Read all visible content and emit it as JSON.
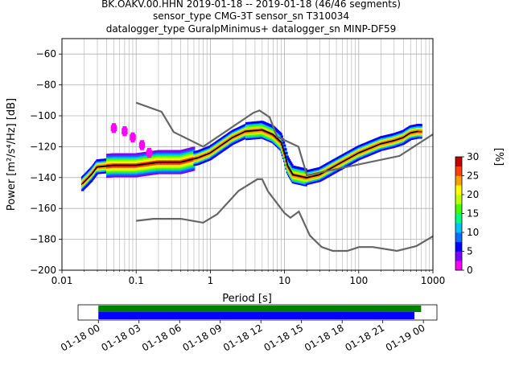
{
  "chart_data": {
    "type": "heatmap",
    "title_lines": [
      "BK.OAKV.00.HHN   2019-01-18 -- 2019-01-18  (46/46 segments)",
      "sensor_type CMG-3T sensor_sn T310034",
      "datalogger_type GuralpMinimus+ datalogger_sn MINP-DF59"
    ],
    "xlabel": "Period [s]",
    "ylabel": "Power [m²/s⁴/Hz] [dB]",
    "x_scale": "log",
    "xlim": [
      0.01,
      1000
    ],
    "ylim": [
      -200,
      -50
    ],
    "x_ticks": [
      {
        "value": 0.01,
        "label": "0.01"
      },
      {
        "value": 0.1,
        "label": "0.1"
      },
      {
        "value": 1,
        "label": "1"
      },
      {
        "value": 10,
        "label": "10"
      },
      {
        "value": 100,
        "label": "100"
      },
      {
        "value": 1000,
        "label": "1000"
      }
    ],
    "y_ticks": [
      {
        "value": -60,
        "label": "−60"
      },
      {
        "value": -80,
        "label": "−80"
      },
      {
        "value": -100,
        "label": "−100"
      },
      {
        "value": -120,
        "label": "−120"
      },
      {
        "value": -140,
        "label": "−140"
      },
      {
        "value": -160,
        "label": "−160"
      },
      {
        "value": -180,
        "label": "−180"
      },
      {
        "value": -200,
        "label": "−200"
      }
    ],
    "grid": true,
    "high_noise_model": [
      [
        0.1,
        -91.5
      ],
      [
        0.22,
        -97.4
      ],
      [
        0.32,
        -110.5
      ],
      [
        0.8,
        -120
      ],
      [
        3.8,
        -98
      ],
      [
        4.6,
        -96.5
      ],
      [
        6.3,
        -101
      ],
      [
        7.9,
        -113.5
      ],
      [
        15.4,
        -120
      ],
      [
        20,
        -138.5
      ],
      [
        354.8,
        -126
      ],
      [
        1000,
        -112
      ]
    ],
    "low_noise_model": [
      [
        0.1,
        -168
      ],
      [
        0.17,
        -166.7
      ],
      [
        0.4,
        -166.7
      ],
      [
        0.8,
        -169.2
      ],
      [
        1.24,
        -163.7
      ],
      [
        2.4,
        -148.6
      ],
      [
        4.3,
        -141.1
      ],
      [
        5,
        -141.1
      ],
      [
        6,
        -149
      ],
      [
        10,
        -163
      ],
      [
        12,
        -166
      ],
      [
        15.6,
        -162
      ],
      [
        21.9,
        -177.5
      ],
      [
        31.6,
        -185
      ],
      [
        45,
        -187.5
      ],
      [
        70,
        -187.5
      ],
      [
        101,
        -185
      ],
      [
        154,
        -185
      ],
      [
        328,
        -187.5
      ],
      [
        600,
        -184.4
      ],
      [
        1000,
        -178
      ]
    ],
    "mode_curve": [
      [
        0.0189,
        -144
      ],
      [
        0.025,
        -138
      ],
      [
        0.03,
        -133
      ],
      [
        0.05,
        -132
      ],
      [
        0.1,
        -132
      ],
      [
        0.2,
        -130
      ],
      [
        0.4,
        -130
      ],
      [
        0.7,
        -127
      ],
      [
        1,
        -124
      ],
      [
        2,
        -114
      ],
      [
        3,
        -110
      ],
      [
        5,
        -109
      ],
      [
        7,
        -112
      ],
      [
        9,
        -117
      ],
      [
        10,
        -124
      ],
      [
        11,
        -132
      ],
      [
        13,
        -138
      ],
      [
        20,
        -140
      ],
      [
        30,
        -138
      ],
      [
        50,
        -132
      ],
      [
        100,
        -124
      ],
      [
        200,
        -118
      ],
      [
        300,
        -116
      ],
      [
        400,
        -114
      ],
      [
        500,
        -111
      ],
      [
        630,
        -110
      ]
    ],
    "high_spread_cluster": [
      [
        0.05,
        -108
      ],
      [
        0.07,
        -110
      ],
      [
        0.09,
        -114
      ],
      [
        0.12,
        -119
      ],
      [
        0.15,
        -124
      ]
    ],
    "colorbar": {
      "label": "[%]",
      "range": [
        0,
        30
      ],
      "ticks": [
        {
          "value": 0,
          "label": "0"
        },
        {
          "value": 5,
          "label": "5"
        },
        {
          "value": 10,
          "label": "10"
        },
        {
          "value": 15,
          "label": "15"
        },
        {
          "value": 20,
          "label": "20"
        },
        {
          "value": 25,
          "label": "25"
        },
        {
          "value": 30,
          "label": "30"
        }
      ],
      "colors": [
        "#ff00ff",
        "#8000ff",
        "#0000ff",
        "#0070ff",
        "#00c0ff",
        "#00ff80",
        "#40ff00",
        "#c0ff00",
        "#ffff00",
        "#ffa000",
        "#ff4000",
        "#c00000"
      ]
    },
    "timeline": {
      "start": "2019-01-18T00:00",
      "end": "2019-01-19T00:00",
      "axis_range": [
        "2019-01-17T22:30",
        "2019-01-19T01:00"
      ],
      "coverage_start": "2019-01-18T00:00",
      "green_end": "2019-01-18T23:50",
      "blue_end": "2019-01-18T23:20",
      "tick_labels": [
        "01-18 00",
        "01-18 03",
        "01-18 06",
        "01-18 09",
        "01-18 12",
        "01-18 15",
        "01-18 18",
        "01-18 21",
        "01-19 00"
      ],
      "colors": {
        "green": "#008000",
        "blue": "#0000ff"
      }
    },
    "model_color": "#666666"
  }
}
